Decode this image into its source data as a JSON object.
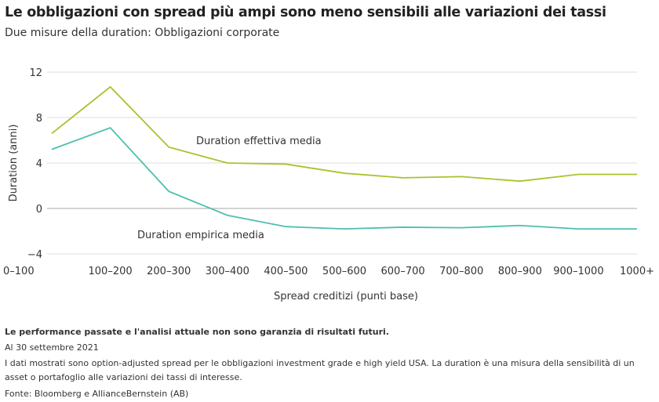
{
  "title": "Le obbligazioni con spread più ampi sono meno sensibili alle variazioni dei tassi",
  "subtitle": "Due misure della duration: Obbligazioni corporate",
  "chart_data": {
    "type": "line",
    "categories": [
      "0–100",
      "100–200",
      "200–300",
      "300–400",
      "400–500",
      "500–600",
      "600–700",
      "700–800",
      "800–900",
      "900–1000",
      "1000+"
    ],
    "xlabel": "Spread creditizi (punti base)",
    "ylabel": "Duration (anni)",
    "ylim": [
      -4,
      12
    ],
    "yticks": [
      12,
      8,
      4,
      0,
      -4
    ],
    "ytick_labels": [
      "12",
      "8",
      "4",
      "0",
      "−4"
    ],
    "grid": true,
    "series": [
      {
        "name": "Duration effettiva media",
        "color": "#a8c32c",
        "values": [
          6.6,
          10.7,
          5.4,
          4.0,
          3.9,
          3.1,
          2.7,
          2.8,
          2.4,
          3.0,
          3.0
        ]
      },
      {
        "name": "Duration empirica media",
        "color": "#4dbfae",
        "values": [
          5.2,
          7.1,
          1.5,
          -0.6,
          -1.6,
          -1.8,
          -1.65,
          -1.7,
          -1.5,
          -1.8,
          -1.8
        ]
      }
    ]
  },
  "notes": {
    "disclaimer": "Le performance passate e l'analisi attuale non sono garanzia di risultati futuri.",
    "date": "Al 30 settembre 2021",
    "description": "I dati mostrati sono option-adjusted spread per le obbligazioni investment grade e high yield USA. La duration è una misura della sensibilità di un asset o portafoglio alle variazioni dei tassi di interesse.",
    "source": "Fonte: Bloomberg e AllianceBernstein (AB)"
  }
}
